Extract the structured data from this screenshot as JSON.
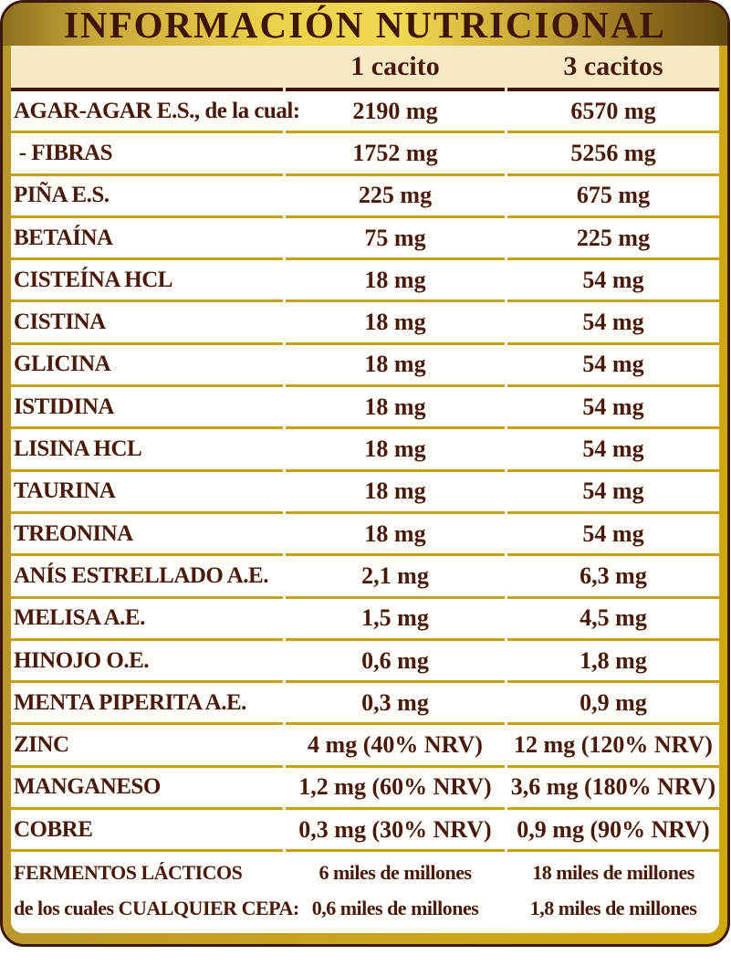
{
  "title": "INFORMACIÓN NUTRICIONAL",
  "columns": {
    "per_1": "1 cacito",
    "per_3": "3 cacitos"
  },
  "rows": [
    {
      "label": "AGAR-AGAR E.S., de la cual:",
      "per_1": "2190 mg",
      "per_3": "6570 mg"
    },
    {
      "label": " - FIBRAS",
      "per_1": "1752 mg",
      "per_3": "5256 mg"
    },
    {
      "label": "PIÑA E.S.",
      "per_1": "225 mg",
      "per_3": "675 mg"
    },
    {
      "label": "BETAÍNA",
      "per_1": "75 mg",
      "per_3": "225 mg"
    },
    {
      "label": "CISTEÍNA HCL",
      "per_1": "18 mg",
      "per_3": "54 mg"
    },
    {
      "label": "CISTINA",
      "per_1": "18 mg",
      "per_3": "54 mg"
    },
    {
      "label": "GLICINA",
      "per_1": "18 mg",
      "per_3": "54 mg"
    },
    {
      "label": "ISTIDINA",
      "per_1": "18 mg",
      "per_3": "54 mg"
    },
    {
      "label": "LISINA HCL",
      "per_1": "18 mg",
      "per_3": "54 mg"
    },
    {
      "label": "TAURINA",
      "per_1": "18 mg",
      "per_3": "54 mg"
    },
    {
      "label": "TREONINA",
      "per_1": "18 mg",
      "per_3": "54 mg"
    },
    {
      "label": "ANÍS ESTRELLADO A.E.",
      "per_1": "2,1 mg",
      "per_3": "6,3 mg"
    },
    {
      "label": "MELISA A.E.",
      "per_1": "1,5 mg",
      "per_3": "4,5 mg"
    },
    {
      "label": "HINOJO O.E.",
      "per_1": "0,6 mg",
      "per_3": "1,8 mg"
    },
    {
      "label": "MENTA PIPERITA A.E.",
      "per_1": "0,3 mg",
      "per_3": "0,9 mg"
    },
    {
      "label": "ZINC",
      "per_1": "4 mg (40% NRV)",
      "per_3": "12 mg (120% NRV)"
    },
    {
      "label": "MANGANESO",
      "per_1": "1,2 mg (60% NRV)",
      "per_3": "3,6 mg (180% NRV)"
    },
    {
      "label": "COBRE",
      "per_1": "0,3 mg (30% NRV)",
      "per_3": "0,9 mg (90% NRV)"
    }
  ],
  "footer_rows": [
    {
      "label": "FERMENTOS LÁCTICOS",
      "per_1": "6 miles de millones",
      "per_3": "18 miles de millones"
    },
    {
      "label": "de los cuales CUALQUIER CEPA:",
      "per_1": "0,6 miles de millones",
      "per_3": "1,8 miles de millones"
    }
  ],
  "colors": {
    "text_maroon": "#471a0c",
    "dark_rule": "#401607",
    "gold_rule": "#c6a01a",
    "cream_band": "#f5e9c6",
    "gold_frame": "#c9a41e",
    "title_gold_bright": "#f0d850",
    "title_gold_dark": "#664a10"
  }
}
